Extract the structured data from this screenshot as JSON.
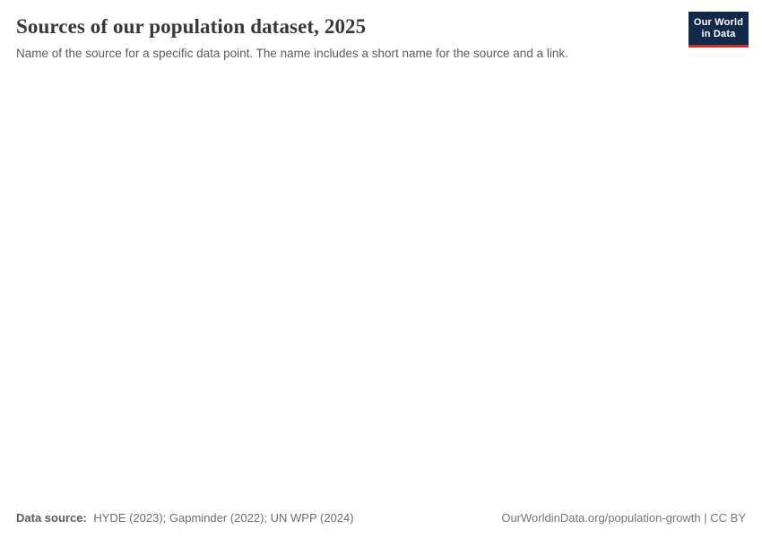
{
  "header": {
    "title": "Sources of our population dataset, 2025",
    "subtitle": "Name of the source for a specific data point. The name includes a short name for the source and a link."
  },
  "logo": {
    "name": "our-world-in-data-logo",
    "line1": "Our World",
    "line2": "in Data"
  },
  "footer": {
    "data_source_label": "Data source:",
    "data_source_value": "HYDE (2023); Gapminder (2022); UN WPP (2024)",
    "right_text": "OurWorldinData.org/population-growth | CC BY"
  },
  "colors": {
    "background": "#ffffff",
    "title_text": "#383838",
    "subtitle_text": "#5b5b5b",
    "footer_text": "#6d6d6d",
    "logo_navy": "#12294a",
    "logo_red": "#c9302b",
    "logo_text": "#ffffff"
  },
  "chart_data": {
    "type": "table",
    "title": "Sources of our population dataset, 2025",
    "subtitle": "Name of the source for a specific data point. The name includes a short name for the source and a link.",
    "categories": [],
    "values": [],
    "series": [],
    "plot_area_empty": true,
    "data_sources": [
      "HYDE (2023)",
      "Gapminder (2022)",
      "UN WPP (2024)"
    ],
    "attribution": "OurWorldinData.org/population-growth | CC BY"
  }
}
